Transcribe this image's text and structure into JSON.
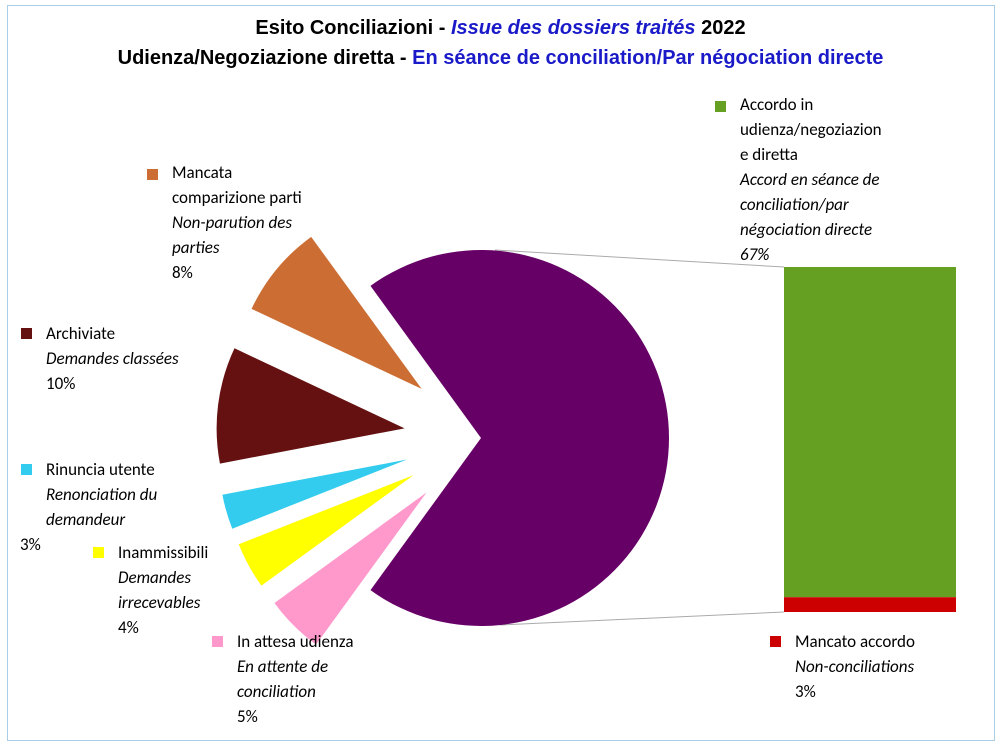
{
  "title": {
    "line1_a": "Esito Conciliazioni - ",
    "line1_b": "Issue des dossiers traités",
    "line1_c": " 2022",
    "line2_a": "Udienza/Negoziazione diretta - ",
    "line2_b": "En séance de conciliation/Par négociation directe"
  },
  "chart_data": [
    {
      "type": "pie",
      "slices": [
        {
          "it": "Accordo in udienza/negoziazione diretta + Mancato accordo",
          "fr": "",
          "value": 70,
          "pct": "",
          "color": "#660066"
        },
        {
          "it": "In attesa udienza",
          "fr": "En attente de conciliation",
          "value": 5,
          "pct": "5%",
          "color": "#ff99cc"
        },
        {
          "it": "Inammissibili",
          "fr": "Demandes irrecevables",
          "value": 4,
          "pct": "4%",
          "color": "#ffff00"
        },
        {
          "it": "Rinuncia utente",
          "fr": "Renonciation du demandeur",
          "value": 3,
          "pct": "3%",
          "color": "#33ccee"
        },
        {
          "it": "Archiviate",
          "fr": "Demandes classées",
          "value": 10,
          "pct": "10%",
          "color": "#661111"
        },
        {
          "it": "Mancata comparizione parti",
          "fr": "Non-parution des parties",
          "value": 8,
          "pct": "8%",
          "color": "#cc6e33"
        }
      ]
    },
    {
      "type": "bar",
      "stacked": true,
      "segments": [
        {
          "it": "Accordo in udienza/negoziazione diretta",
          "fr": "Accord en séance de conciliation/par négociation directe",
          "value": 67,
          "pct": "67%",
          "color": "#66a022"
        },
        {
          "it": "Mancato accordo",
          "fr": "Non-conciliations",
          "value": 3,
          "pct": "3%",
          "color": "#cc0000"
        }
      ]
    }
  ],
  "labels": {
    "accordo": {
      "l1": "Accordo in",
      "l2": "udienza/negoziazion",
      "l3": "e diretta",
      "f1": "Accord en séance de",
      "f2": "conciliation/par",
      "f3": "négociation directe",
      "pct": "67%"
    },
    "mancata": {
      "l1": "Mancata",
      "l2": "comparizione parti",
      "f1": "Non-parution des",
      "f2": "parties",
      "pct": "8%"
    },
    "archiviate": {
      "l1": "Archiviate",
      "f1": "Demandes classées",
      "pct": "10%"
    },
    "rinuncia": {
      "l1": "Rinuncia utente",
      "f1": "Renonciation du",
      "f2": "demandeur",
      "pct": "3%"
    },
    "inammissibili": {
      "l1": "Inammissibili",
      "f1": "Demandes",
      "f2": "irrecevables",
      "pct": "4%"
    },
    "attesa": {
      "l1": "In attesa udienza",
      "f1": "En attente de",
      "f2": "conciliation",
      "pct": "5%"
    },
    "mancato": {
      "l1": "Mancato accordo",
      "f1": "Non-conciliations",
      "pct": "3%"
    }
  }
}
